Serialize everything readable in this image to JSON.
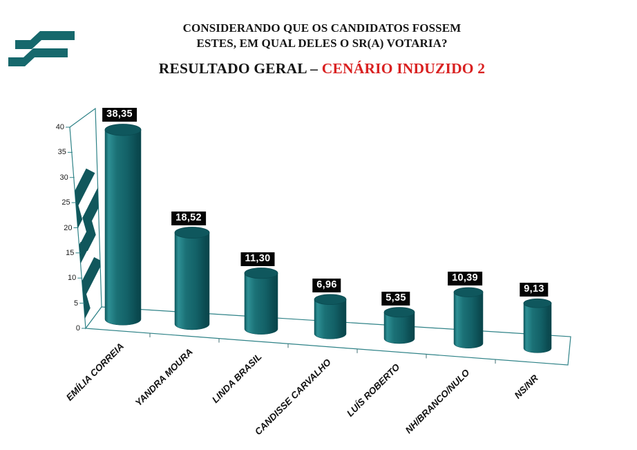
{
  "logo": {
    "name": "polling-institute-logo",
    "color": "#16686c"
  },
  "header": {
    "title_line1": "CONSIDERANDO QUE OS CANDIDATOS FOSSEM",
    "title_line2": "ESTES, EM QUAL DELES O SR(A) VOTARIA?",
    "subtitle_black": "RESULTADO GERAL – ",
    "subtitle_red": "CENÁRIO INDUZIDO 2",
    "subtitle_red_color": "#d92121"
  },
  "chart_data": {
    "type": "bar",
    "subtype": "3d-cylinder",
    "title": "CONSIDERANDO QUE OS CANDIDATOS FOSSEM ESTES, EM QUAL DELES O SR(A) VOTARIA? — RESULTADO GERAL – CENÁRIO INDUZIDO 2",
    "xlabel": "",
    "ylabel": "",
    "categories": [
      "EMÍLIA CORREIA",
      "YANDRA MOURA",
      "LINDA BRASIL",
      "CANDISSE CARVALHO",
      "LUÍS ROBERTO",
      "NH/BRANCO/NULO",
      "NS/NR"
    ],
    "values": [
      38.35,
      18.52,
      11.3,
      6.96,
      5.35,
      10.39,
      9.13
    ],
    "value_labels": [
      "38,35",
      "18,52",
      "11,30",
      "6,96",
      "5,35",
      "10,39",
      "9,13"
    ],
    "ylim": [
      0,
      40
    ],
    "ytick_step": 5,
    "yticks": [
      "0",
      "5",
      "10",
      "15",
      "20",
      "25",
      "30",
      "35",
      "40"
    ],
    "grid": "off",
    "legend_position": "none",
    "bar_color": "#17696e",
    "bar_top_color": "#0f575d",
    "frame_color": "#2e8287",
    "floor_tick_color": "#437074",
    "watermark_color": "#11575c",
    "value_label_bg": "#040404",
    "value_label_fg": "#ffffff"
  }
}
